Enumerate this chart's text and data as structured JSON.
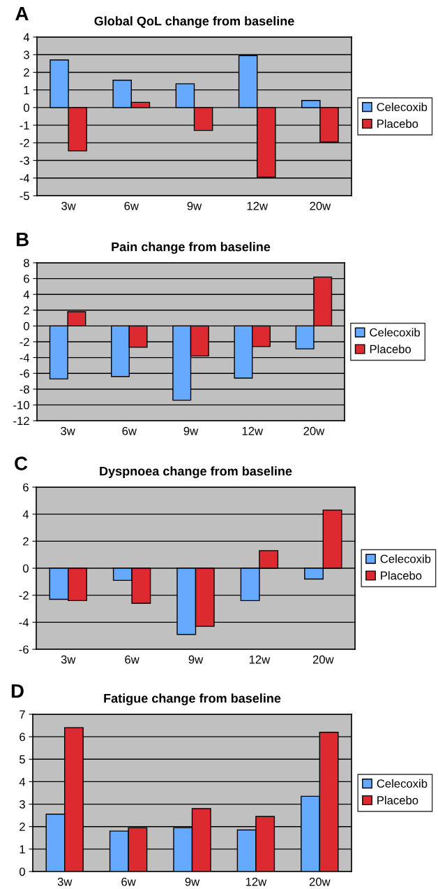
{
  "chart_data": [
    {
      "type": "bar",
      "title": "Global QoL change from baseline",
      "annotations": [
        "A"
      ],
      "categories": [
        "3w",
        "6w",
        "9w",
        "12w",
        "20w"
      ],
      "series": [
        {
          "name": "Celecoxib",
          "color": "#66aaff",
          "values": [
            2.7,
            1.55,
            1.35,
            2.95,
            0.4
          ]
        },
        {
          "name": "Placebo",
          "color": "#dd2a30",
          "values": [
            -2.45,
            0.3,
            -1.3,
            -3.95,
            -1.95
          ]
        }
      ],
      "ylim": [
        -5,
        4
      ],
      "yticks": [
        -5,
        -4,
        -3,
        -2,
        -1,
        0,
        1,
        2,
        3,
        4
      ],
      "grid": "y",
      "legend": "right"
    },
    {
      "type": "bar",
      "title": "Pain change from baseline",
      "annotations": [
        "B"
      ],
      "categories": [
        "3w",
        "6w",
        "9w",
        "12w",
        "20w"
      ],
      "series": [
        {
          "name": "Celecoxib",
          "color": "#66aaff",
          "values": [
            -6.7,
            -6.4,
            -9.4,
            -6.6,
            -2.9
          ]
        },
        {
          "name": "Placebo",
          "color": "#dd2a30",
          "values": [
            1.8,
            -2.7,
            -3.8,
            -2.6,
            6.2
          ]
        }
      ],
      "ylim": [
        -12,
        8
      ],
      "yticks": [
        -12,
        -10,
        -8,
        -6,
        -4,
        -2,
        0,
        2,
        4,
        6,
        8
      ],
      "grid": "y",
      "legend": "right"
    },
    {
      "type": "bar",
      "title": "Dyspnoea change from baseline",
      "annotations": [
        "C"
      ],
      "categories": [
        "3w",
        "6w",
        "9w",
        "12w",
        "20w"
      ],
      "series": [
        {
          "name": "Celecoxib",
          "color": "#66aaff",
          "values": [
            -2.3,
            -0.9,
            -4.9,
            -2.4,
            -0.8
          ]
        },
        {
          "name": "Placebo",
          "color": "#dd2a30",
          "values": [
            -2.4,
            -2.6,
            -4.3,
            1.3,
            4.3
          ]
        }
      ],
      "ylim": [
        -6,
        6
      ],
      "yticks": [
        -6,
        -4,
        -2,
        0,
        2,
        4,
        6
      ],
      "grid": "y",
      "legend": "right"
    },
    {
      "type": "bar",
      "title": "Fatigue change from baseline",
      "annotations": [
        "D"
      ],
      "categories": [
        "3w",
        "6w",
        "9w",
        "12w",
        "20w"
      ],
      "series": [
        {
          "name": "Celecoxib",
          "color": "#66aaff",
          "values": [
            2.55,
            1.8,
            1.95,
            1.85,
            3.35
          ]
        },
        {
          "name": "Placebo",
          "color": "#dd2a30",
          "values": [
            6.4,
            1.95,
            2.8,
            2.45,
            6.2
          ]
        }
      ],
      "ylim": [
        0,
        7
      ],
      "yticks": [
        0,
        1,
        2,
        3,
        4,
        5,
        6,
        7
      ],
      "grid": "y",
      "legend": "right"
    }
  ]
}
